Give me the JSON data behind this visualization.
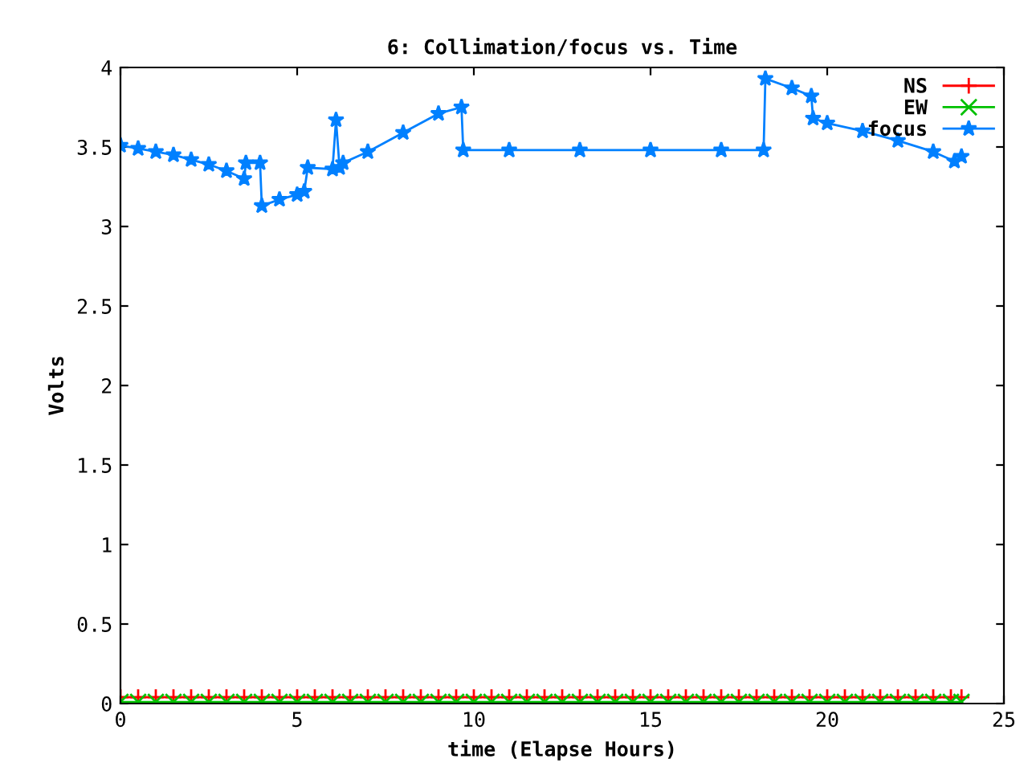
{
  "chart_data": {
    "type": "line",
    "title": "6: Collimation/focus vs. Time",
    "xlabel": "time (Elapse Hours)",
    "ylabel": "Volts",
    "xlim": [
      0,
      25
    ],
    "xticks": [
      0,
      5,
      10,
      15,
      20,
      25
    ],
    "ylim": [
      0,
      4
    ],
    "yticks": [
      0,
      0.5,
      1,
      1.5,
      2,
      2.5,
      3,
      3.5,
      4
    ],
    "grid": false,
    "legend": "top right",
    "line_style": "solid",
    "series": [
      {
        "name": "NS",
        "color": "#ff0000",
        "marker": "plus",
        "x": [
          0,
          0.5,
          1,
          1.5,
          2,
          2.5,
          3,
          3.5,
          4,
          4.5,
          5,
          5.5,
          6,
          6.5,
          7,
          7.5,
          8,
          8.5,
          9,
          9.5,
          10,
          10.5,
          11,
          11.5,
          12,
          12.5,
          13,
          13.5,
          14,
          14.5,
          15,
          15.5,
          16,
          16.5,
          17,
          17.5,
          18,
          18.5,
          19,
          19.5,
          20,
          20.5,
          21,
          21.5,
          22,
          22.5,
          23,
          23.5,
          23.8
        ],
        "values": [
          0.04,
          0.04,
          0.04,
          0.04,
          0.04,
          0.04,
          0.04,
          0.04,
          0.04,
          0.04,
          0.04,
          0.04,
          0.04,
          0.04,
          0.04,
          0.04,
          0.04,
          0.04,
          0.04,
          0.04,
          0.04,
          0.04,
          0.04,
          0.04,
          0.04,
          0.04,
          0.04,
          0.04,
          0.04,
          0.04,
          0.04,
          0.04,
          0.04,
          0.04,
          0.04,
          0.04,
          0.04,
          0.04,
          0.04,
          0.04,
          0.04,
          0.04,
          0.04,
          0.04,
          0.04,
          0.04,
          0.04,
          0.04,
          0.04
        ]
      },
      {
        "name": "EW",
        "color": "#00c000",
        "marker": "cross",
        "x": [
          0,
          0.5,
          1,
          1.5,
          2,
          2.5,
          3,
          3.5,
          4,
          4.5,
          5,
          5.5,
          6,
          6.5,
          7,
          7.5,
          8,
          8.5,
          9,
          9.5,
          10,
          10.5,
          11,
          11.5,
          12,
          12.5,
          13,
          13.5,
          14,
          14.5,
          15,
          15.5,
          16,
          16.5,
          17,
          17.5,
          18,
          18.5,
          19,
          19.5,
          20,
          20.5,
          21,
          21.5,
          22,
          22.5,
          23,
          23.5,
          23.8
        ],
        "values": [
          0.01,
          0.01,
          0.01,
          0.01,
          0.01,
          0.01,
          0.01,
          0.01,
          0.01,
          0.01,
          0.01,
          0.01,
          0.01,
          0.01,
          0.01,
          0.01,
          0.01,
          0.01,
          0.01,
          0.01,
          0.01,
          0.01,
          0.01,
          0.01,
          0.01,
          0.01,
          0.01,
          0.01,
          0.01,
          0.01,
          0.01,
          0.01,
          0.01,
          0.01,
          0.01,
          0.01,
          0.01,
          0.01,
          0.01,
          0.01,
          0.01,
          0.01,
          0.01,
          0.01,
          0.01,
          0.01,
          0.01,
          0.01,
          0.01
        ]
      },
      {
        "name": "focus",
        "color": "#0080ff",
        "marker": "star",
        "x": [
          0,
          0.5,
          1,
          1.5,
          2,
          2.5,
          3,
          3.5,
          3.55,
          3.95,
          4.0,
          4.5,
          5.0,
          5.2,
          5.3,
          6.0,
          6.1,
          6.2,
          6.3,
          7,
          8,
          9,
          9.65,
          9.7,
          11,
          13,
          15,
          17,
          18.2,
          18.25,
          19,
          19.55,
          19.6,
          20,
          21,
          22,
          23,
          23.6,
          23.8
        ],
        "values": [
          3.51,
          3.49,
          3.47,
          3.45,
          3.42,
          3.39,
          3.35,
          3.3,
          3.4,
          3.4,
          3.13,
          3.17,
          3.2,
          3.22,
          3.37,
          3.36,
          3.67,
          3.37,
          3.4,
          3.47,
          3.59,
          3.71,
          3.75,
          3.48,
          3.48,
          3.48,
          3.48,
          3.48,
          3.48,
          3.93,
          3.87,
          3.82,
          3.68,
          3.65,
          3.6,
          3.54,
          3.47,
          3.41,
          3.44
        ]
      }
    ]
  }
}
